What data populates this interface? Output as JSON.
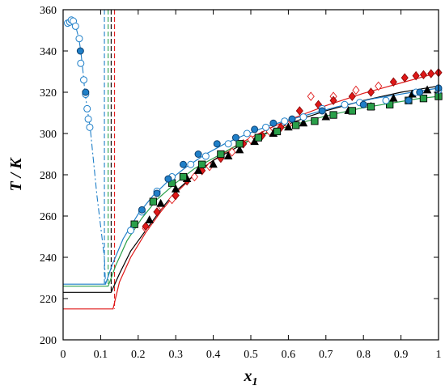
{
  "chart_data": {
    "type": "scatter",
    "title": "",
    "xlabel": "x",
    "xlabel_subscript": "1",
    "ylabel": "T / K",
    "xlim": [
      0,
      1
    ],
    "ylim": [
      200,
      360
    ],
    "xticks": [
      "0",
      "0.1",
      "0.2",
      "0.3",
      "0.4",
      "0.5",
      "0.6",
      "0.7",
      "0.8",
      "0.9",
      "1"
    ],
    "yticks": [
      "200",
      "220",
      "240",
      "260",
      "280",
      "300",
      "320",
      "340",
      "360"
    ],
    "grid": false,
    "legend": "none",
    "series": [
      {
        "color": "#e01818",
        "marker": "diamond",
        "curve": [
          [
            0.0,
            215
          ],
          [
            0.133,
            215
          ],
          [
            0.15,
            228
          ],
          [
            0.18,
            240
          ],
          [
            0.22,
            252
          ],
          [
            0.26,
            262
          ],
          [
            0.3,
            271
          ],
          [
            0.35,
            280
          ],
          [
            0.4,
            287
          ],
          [
            0.45,
            293
          ],
          [
            0.5,
            298
          ],
          [
            0.55,
            302.5
          ],
          [
            0.6,
            306.5
          ],
          [
            0.65,
            310
          ],
          [
            0.7,
            313.5
          ],
          [
            0.75,
            316.5
          ],
          [
            0.8,
            319.5
          ],
          [
            0.85,
            322
          ],
          [
            0.9,
            324.5
          ],
          [
            0.95,
            327
          ],
          [
            1.0,
            329.5
          ]
        ],
        "filled": [
          [
            0.22,
            255
          ],
          [
            0.25,
            262
          ],
          [
            0.3,
            270
          ],
          [
            0.33,
            277
          ],
          [
            0.37,
            282
          ],
          [
            0.42,
            288
          ],
          [
            0.48,
            295
          ],
          [
            0.53,
            299
          ],
          [
            0.58,
            303
          ],
          [
            0.63,
            311
          ],
          [
            0.68,
            314
          ],
          [
            0.72,
            316
          ],
          [
            0.77,
            318
          ],
          [
            0.82,
            320
          ],
          [
            0.88,
            325
          ],
          [
            0.91,
            327
          ],
          [
            0.94,
            328
          ],
          [
            0.96,
            328.5
          ],
          [
            0.98,
            329
          ],
          [
            1.0,
            329.5
          ]
        ],
        "open": [
          [
            0.22,
            254
          ],
          [
            0.26,
            265
          ],
          [
            0.29,
            268
          ],
          [
            0.35,
            279
          ],
          [
            0.39,
            284
          ],
          [
            0.45,
            291
          ],
          [
            0.5,
            297
          ],
          [
            0.55,
            301
          ],
          [
            0.6,
            304
          ],
          [
            0.66,
            318
          ],
          [
            0.72,
            318
          ],
          [
            0.78,
            321
          ],
          [
            0.84,
            323
          ]
        ],
        "vline": 0.137
      },
      {
        "color": "#000000",
        "marker": "triangle",
        "curve": [
          [
            0.0,
            223
          ],
          [
            0.128,
            223
          ],
          [
            0.15,
            232
          ],
          [
            0.18,
            243
          ],
          [
            0.22,
            253
          ],
          [
            0.26,
            263
          ],
          [
            0.3,
            272
          ],
          [
            0.35,
            280
          ],
          [
            0.4,
            287
          ],
          [
            0.45,
            292
          ],
          [
            0.5,
            297
          ],
          [
            0.55,
            301
          ],
          [
            0.6,
            304.5
          ],
          [
            0.65,
            308
          ],
          [
            0.7,
            311
          ],
          [
            0.75,
            313.5
          ],
          [
            0.8,
            316
          ],
          [
            0.85,
            318
          ],
          [
            0.9,
            320
          ],
          [
            0.95,
            321.5
          ],
          [
            1.0,
            323
          ]
        ],
        "filled": [
          [
            0.23,
            258
          ],
          [
            0.26,
            266
          ],
          [
            0.3,
            273
          ],
          [
            0.33,
            278
          ],
          [
            0.36,
            282
          ],
          [
            0.4,
            285
          ],
          [
            0.44,
            289
          ],
          [
            0.47,
            292
          ],
          [
            0.51,
            296
          ],
          [
            0.56,
            300
          ],
          [
            0.6,
            303
          ],
          [
            0.64,
            305
          ],
          [
            0.7,
            308
          ],
          [
            0.76,
            311
          ],
          [
            0.82,
            313
          ],
          [
            0.88,
            317
          ],
          [
            0.93,
            319
          ],
          [
            0.97,
            321
          ]
        ],
        "vline": 0.128
      },
      {
        "color": "#2aa04a",
        "marker": "square",
        "curve": [
          [
            0.0,
            226
          ],
          [
            0.12,
            226
          ],
          [
            0.14,
            236
          ],
          [
            0.17,
            248
          ],
          [
            0.21,
            259
          ],
          [
            0.25,
            268
          ],
          [
            0.3,
            276
          ],
          [
            0.35,
            283
          ],
          [
            0.4,
            288
          ],
          [
            0.45,
            293
          ],
          [
            0.5,
            297
          ],
          [
            0.55,
            300.5
          ],
          [
            0.6,
            303.5
          ],
          [
            0.65,
            306
          ],
          [
            0.7,
            308.5
          ],
          [
            0.75,
            310.5
          ],
          [
            0.8,
            312.5
          ],
          [
            0.85,
            314
          ],
          [
            0.9,
            315.5
          ],
          [
            0.95,
            317
          ],
          [
            1.0,
            318
          ]
        ],
        "filled": [
          [
            0.19,
            256
          ],
          [
            0.24,
            267
          ],
          [
            0.29,
            276
          ],
          [
            0.32,
            279
          ],
          [
            0.37,
            285
          ],
          [
            0.42,
            290
          ],
          [
            0.47,
            295
          ],
          [
            0.52,
            298
          ],
          [
            0.57,
            301
          ],
          [
            0.62,
            304
          ],
          [
            0.67,
            306
          ],
          [
            0.72,
            309
          ],
          [
            0.77,
            311
          ],
          [
            0.82,
            313
          ],
          [
            0.87,
            314
          ],
          [
            0.92,
            316
          ],
          [
            0.96,
            317
          ],
          [
            1.0,
            318
          ]
        ],
        "vline": 0.12
      },
      {
        "color": "#1f7fc8",
        "marker": "circle",
        "curve": [
          [
            0.0,
            227
          ],
          [
            0.113,
            227
          ],
          [
            0.13,
            236
          ],
          [
            0.16,
            249
          ],
          [
            0.2,
            261
          ],
          [
            0.24,
            270
          ],
          [
            0.28,
            277
          ],
          [
            0.33,
            284
          ],
          [
            0.38,
            290
          ],
          [
            0.43,
            295
          ],
          [
            0.48,
            299
          ],
          [
            0.53,
            302.5
          ],
          [
            0.58,
            305.5
          ],
          [
            0.63,
            308
          ],
          [
            0.68,
            310.5
          ],
          [
            0.73,
            313
          ],
          [
            0.78,
            315
          ],
          [
            0.83,
            317
          ],
          [
            0.88,
            318.5
          ],
          [
            0.93,
            320
          ],
          [
            1.0,
            322
          ]
        ],
        "filled": [
          [
            0.21,
            263
          ],
          [
            0.25,
            271
          ],
          [
            0.28,
            278
          ],
          [
            0.32,
            285
          ],
          [
            0.36,
            290
          ],
          [
            0.41,
            295
          ],
          [
            0.46,
            298
          ],
          [
            0.51,
            302
          ],
          [
            0.56,
            305
          ],
          [
            0.61,
            307
          ],
          [
            0.69,
            311
          ],
          [
            0.8,
            314
          ],
          [
            0.92,
            316
          ],
          [
            0.95,
            320
          ],
          [
            1.0,
            322
          ]
        ],
        "open": [
          [
            0.18,
            253
          ],
          [
            0.21,
            262
          ],
          [
            0.25,
            272
          ],
          [
            0.29,
            279
          ],
          [
            0.34,
            285
          ],
          [
            0.38,
            289
          ],
          [
            0.44,
            295
          ],
          [
            0.49,
            300
          ],
          [
            0.54,
            303
          ],
          [
            0.59,
            306
          ],
          [
            0.64,
            308
          ],
          [
            0.69,
            312
          ],
          [
            0.75,
            314
          ],
          [
            0.79,
            315
          ],
          [
            0.86,
            316
          ],
          [
            0.94,
            320
          ],
          [
            1.0,
            321
          ]
        ],
        "vline": 0.11,
        "lowx_curve": [
          [
            0.013,
            354
          ],
          [
            0.025,
            354.5
          ],
          [
            0.035,
            351
          ],
          [
            0.042,
            346
          ],
          [
            0.047,
            340
          ],
          [
            0.053,
            330
          ],
          [
            0.058,
            320
          ],
          [
            0.066,
            310
          ],
          [
            0.072,
            303
          ],
          [
            0.09,
            270
          ],
          [
            0.11,
            240
          ],
          [
            0.113,
            227
          ]
        ],
        "lowx_open": [
          [
            0.012,
            353.5
          ],
          [
            0.018,
            354
          ],
          [
            0.022,
            355
          ],
          [
            0.027,
            354.5
          ],
          [
            0.033,
            352
          ],
          [
            0.043,
            346
          ],
          [
            0.047,
            334
          ],
          [
            0.055,
            326
          ],
          [
            0.06,
            319
          ],
          [
            0.064,
            312
          ],
          [
            0.067,
            307
          ],
          [
            0.071,
            303
          ]
        ],
        "lowx_filled": [
          [
            0.046,
            340
          ],
          [
            0.06,
            320
          ]
        ]
      }
    ]
  }
}
